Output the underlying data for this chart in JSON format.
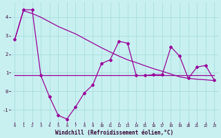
{
  "xlabel": "Windchill (Refroidissement éolien,°C)",
  "background_color": "#c8f0f0",
  "grid_color": "#a8dcdc",
  "line_color": "#990099",
  "line_color2": "#880088",
  "hours_all": [
    0,
    1,
    2,
    3,
    4,
    5,
    6,
    7,
    8,
    9,
    10,
    11,
    12,
    13,
    14,
    15,
    16,
    17,
    18,
    19,
    20,
    21,
    22,
    23
  ],
  "trend_line": [
    2.8,
    4.35,
    4.2,
    4.0,
    3.75,
    3.5,
    3.3,
    3.1,
    2.85,
    2.6,
    2.35,
    2.12,
    1.9,
    1.7,
    1.55,
    1.38,
    1.22,
    1.08,
    0.93,
    0.78,
    0.7,
    0.65,
    0.62,
    0.58
  ],
  "flat_line": [
    0.85,
    0.85,
    0.85,
    0.85,
    0.85,
    0.85,
    0.85,
    0.85,
    0.85,
    0.85,
    0.85,
    0.85,
    0.85,
    0.85,
    0.85,
    0.85,
    0.85,
    0.85,
    0.85,
    0.85,
    0.85,
    0.85,
    0.85,
    0.85
  ],
  "jagged_x": [
    0,
    1,
    2,
    3,
    4,
    5,
    6,
    7,
    8,
    9,
    10,
    11,
    12,
    13,
    14,
    15,
    16,
    17,
    18,
    19,
    20,
    21,
    22,
    23
  ],
  "jagged_y": [
    2.8,
    4.4,
    4.4,
    0.85,
    -0.3,
    -1.3,
    -1.5,
    -0.85,
    -0.1,
    0.35,
    1.5,
    1.7,
    2.7,
    2.6,
    0.85,
    0.85,
    0.9,
    0.9,
    2.4,
    1.9,
    0.7,
    1.3,
    1.4,
    0.6
  ],
  "ylim": [
    -1.65,
    4.8
  ],
  "yticks": [
    -1,
    0,
    1,
    2,
    3,
    4
  ],
  "xlim": [
    -0.5,
    23.5
  ],
  "xticks": [
    0,
    1,
    2,
    3,
    4,
    5,
    6,
    7,
    8,
    9,
    10,
    11,
    12,
    13,
    14,
    15,
    16,
    17,
    18,
    19,
    20,
    21,
    22,
    23
  ]
}
